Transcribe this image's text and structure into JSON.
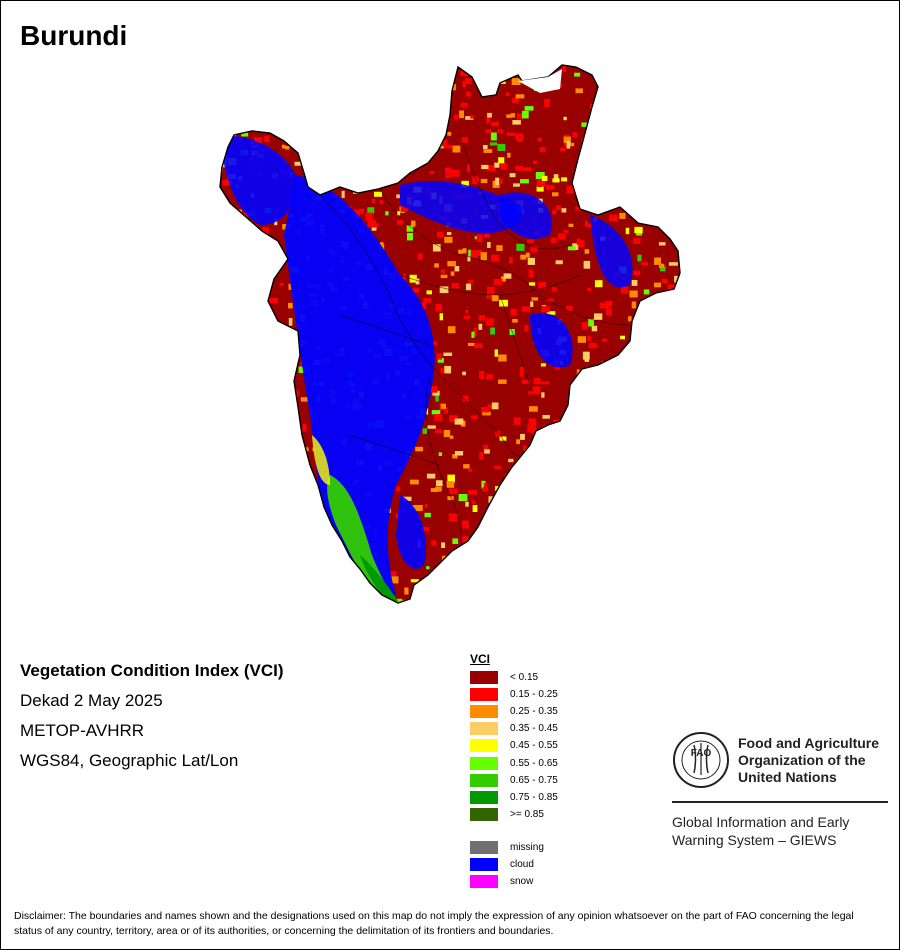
{
  "title": "Burundi",
  "info": {
    "index_name": "Vegetation Condition Index (VCI)",
    "period": "Dekad 2 May 2025",
    "sensor": "METOP-AVHRR",
    "projection": "WGS84, Geographic Lat/Lon"
  },
  "legend": {
    "title": "VCI",
    "classes": [
      {
        "label": "< 0.15",
        "color": "#990000"
      },
      {
        "label": "0.15 - 0.25",
        "color": "#ff0000"
      },
      {
        "label": "0.25 - 0.35",
        "color": "#ff8c00"
      },
      {
        "label": "0.35 - 0.45",
        "color": "#ffcc66"
      },
      {
        "label": "0.45 - 0.55",
        "color": "#ffff00"
      },
      {
        "label": "0.55 - 0.65",
        "color": "#66ff00"
      },
      {
        "label": "0.65 - 0.75",
        "color": "#33cc00"
      },
      {
        "label": "0.75 - 0.85",
        "color": "#009900"
      },
      {
        "label": ">= 0.85",
        "color": "#336600"
      }
    ],
    "special": [
      {
        "label": "missing",
        "color": "#707070"
      },
      {
        "label": "cloud",
        "color": "#0000ff"
      },
      {
        "label": "snow",
        "color": "#ff00ff"
      }
    ]
  },
  "organization": {
    "name_lines": [
      "Food and Agriculture",
      "Organization of the",
      "United Nations"
    ],
    "logo_text": "FAO",
    "system_lines": [
      "Global Information and Early",
      "Warning System – GIEWS"
    ]
  },
  "disclaimer": "Disclaimer: The boundaries and names shown and the designations used on this map do not imply the expression of any opinion whatsoever on the part of FAO concerning the legal status of any country, territory, area or of its authorities, or concerning the delimitation of its frontiers and boundaries."
}
